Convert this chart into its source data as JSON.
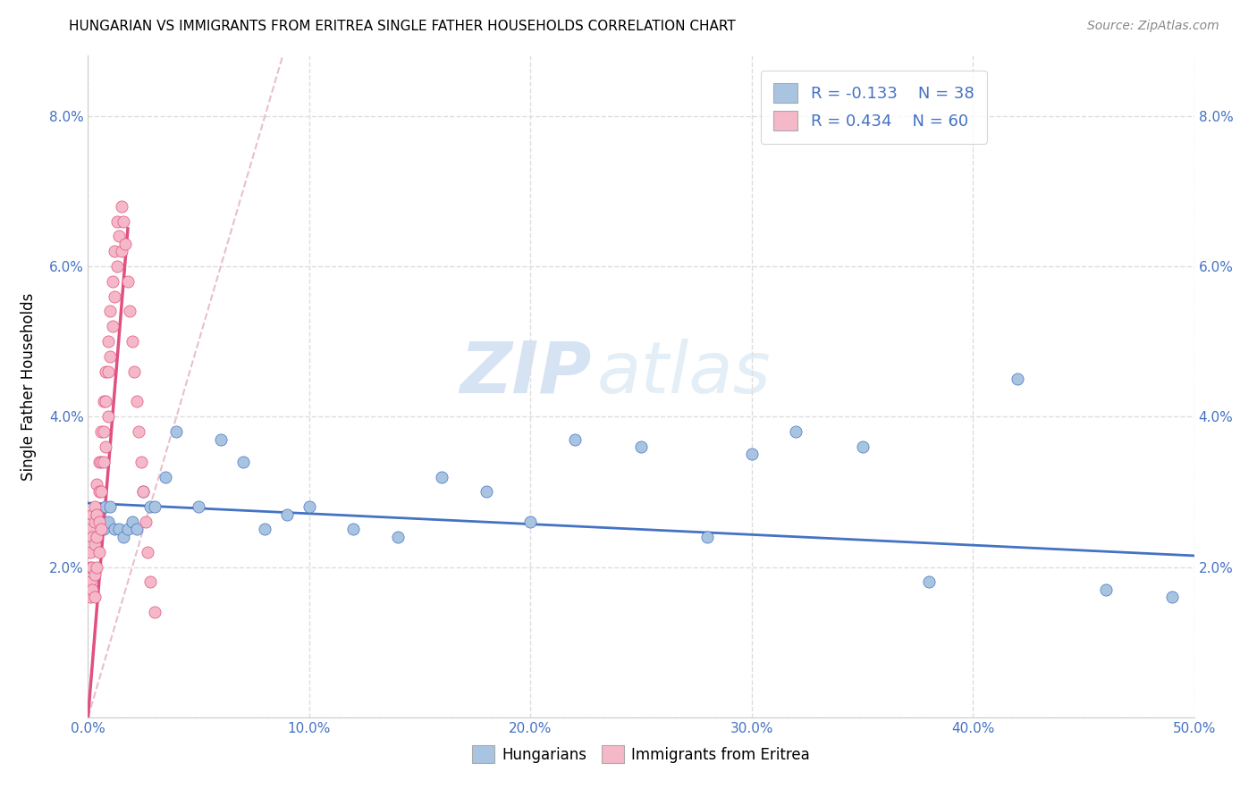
{
  "title": "HUNGARIAN VS IMMIGRANTS FROM ERITREA SINGLE FATHER HOUSEHOLDS CORRELATION CHART",
  "source": "Source: ZipAtlas.com",
  "ylabel": "Single Father Households",
  "xlim": [
    0.0,
    0.5
  ],
  "ylim": [
    0.0,
    0.088
  ],
  "xticks": [
    0.0,
    0.1,
    0.2,
    0.3,
    0.4,
    0.5
  ],
  "xticklabels": [
    "0.0%",
    "10.0%",
    "20.0%",
    "30.0%",
    "40.0%",
    "50.0%"
  ],
  "yticks": [
    0.0,
    0.02,
    0.04,
    0.06,
    0.08
  ],
  "yticklabels": [
    "",
    "2.0%",
    "4.0%",
    "6.0%",
    "8.0%"
  ],
  "color_hungarian": "#a8c4e0",
  "color_eritrea": "#f4b8c8",
  "color_hungarian_line": "#4472c4",
  "color_eritrea_line": "#e05080",
  "color_ref_line": "#e0b0c0",
  "watermark_zip": "ZIP",
  "watermark_atlas": "atlas",
  "hun_x": [
    0.003,
    0.005,
    0.007,
    0.008,
    0.009,
    0.01,
    0.012,
    0.014,
    0.016,
    0.018,
    0.02,
    0.022,
    0.025,
    0.028,
    0.03,
    0.035,
    0.04,
    0.05,
    0.06,
    0.07,
    0.08,
    0.09,
    0.1,
    0.12,
    0.14,
    0.16,
    0.18,
    0.2,
    0.22,
    0.25,
    0.28,
    0.3,
    0.32,
    0.35,
    0.38,
    0.42,
    0.46,
    0.49
  ],
  "hun_y": [
    0.027,
    0.026,
    0.025,
    0.028,
    0.026,
    0.028,
    0.025,
    0.025,
    0.024,
    0.025,
    0.026,
    0.025,
    0.03,
    0.028,
    0.028,
    0.032,
    0.038,
    0.028,
    0.037,
    0.034,
    0.025,
    0.027,
    0.028,
    0.025,
    0.024,
    0.032,
    0.03,
    0.026,
    0.037,
    0.036,
    0.024,
    0.035,
    0.038,
    0.036,
    0.018,
    0.045,
    0.017,
    0.016
  ],
  "eri_x": [
    0.001,
    0.001,
    0.001,
    0.001,
    0.001,
    0.002,
    0.002,
    0.002,
    0.002,
    0.003,
    0.003,
    0.003,
    0.003,
    0.003,
    0.004,
    0.004,
    0.004,
    0.004,
    0.005,
    0.005,
    0.005,
    0.005,
    0.006,
    0.006,
    0.006,
    0.006,
    0.007,
    0.007,
    0.007,
    0.008,
    0.008,
    0.008,
    0.009,
    0.009,
    0.009,
    0.01,
    0.01,
    0.011,
    0.011,
    0.012,
    0.012,
    0.013,
    0.013,
    0.014,
    0.015,
    0.015,
    0.016,
    0.017,
    0.018,
    0.019,
    0.02,
    0.021,
    0.022,
    0.023,
    0.024,
    0.025,
    0.026,
    0.027,
    0.028,
    0.03
  ],
  "eri_y": [
    0.025,
    0.022,
    0.02,
    0.018,
    0.016,
    0.027,
    0.024,
    0.02,
    0.017,
    0.028,
    0.026,
    0.023,
    0.019,
    0.016,
    0.031,
    0.027,
    0.024,
    0.02,
    0.034,
    0.03,
    0.026,
    0.022,
    0.038,
    0.034,
    0.03,
    0.025,
    0.042,
    0.038,
    0.034,
    0.046,
    0.042,
    0.036,
    0.05,
    0.046,
    0.04,
    0.054,
    0.048,
    0.058,
    0.052,
    0.062,
    0.056,
    0.066,
    0.06,
    0.064,
    0.068,
    0.062,
    0.066,
    0.063,
    0.058,
    0.054,
    0.05,
    0.046,
    0.042,
    0.038,
    0.034,
    0.03,
    0.026,
    0.022,
    0.018,
    0.014
  ],
  "hun_trendline_x": [
    0.0,
    0.5
  ],
  "hun_trendline_y": [
    0.0285,
    0.0215
  ],
  "eri_trendline_x": [
    0.0,
    0.018
  ],
  "eri_trendline_y": [
    0.0,
    0.065
  ],
  "ref_line_x": [
    0.0,
    0.088
  ],
  "ref_line_y": [
    0.0,
    0.088
  ]
}
